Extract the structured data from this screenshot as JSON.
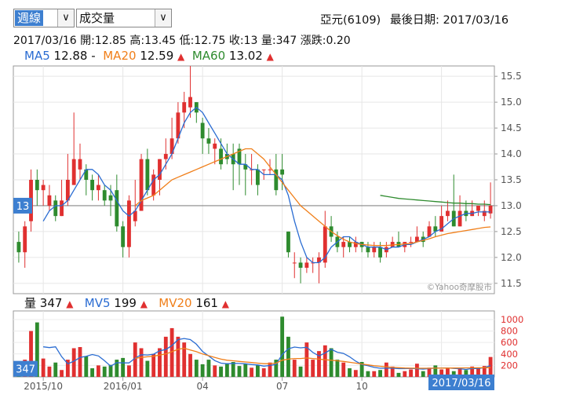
{
  "toolbar": {
    "period_select": {
      "value": "週線",
      "arrow": "∨"
    },
    "indicator_select": {
      "value": "成交量",
      "arrow": "∨"
    }
  },
  "stock": {
    "name_code": "亞元(6109)",
    "last_date_label": "最後日期: 2017/03/16"
  },
  "ohlc_line": {
    "date": "2017/03/16",
    "open": "開:12.85",
    "high": "高:13.45",
    "low": "低:12.75",
    "close": "收:13",
    "volume": "量:347",
    "change": "漲跌:0.20"
  },
  "ma_legend": [
    {
      "label": "MA5",
      "value": "12.88",
      "trend": "-",
      "color": "#2a6cd2"
    },
    {
      "label": "MA20",
      "value": "12.59",
      "trend": "▲",
      "color": "#f07f1a"
    },
    {
      "label": "MA60",
      "value": "13.02",
      "trend": "▲",
      "color": "#2e8b2e"
    }
  ],
  "vol_legend": [
    {
      "label": "量",
      "value": "347",
      "trend": "▲",
      "color": "#111111"
    },
    {
      "label": "MV5",
      "value": "199",
      "trend": "▲",
      "color": "#2a6cd2"
    },
    {
      "label": "MV20",
      "value": "161",
      "trend": "▲",
      "color": "#f07f1a"
    }
  ],
  "price_marker": "13",
  "volume_marker": "347",
  "date_marker": "2017/03/16",
  "watermark": "©Yahoo奇摩股市",
  "colors": {
    "up": "#e03030",
    "down": "#2e8b2e",
    "ma5": "#2a6cd2",
    "ma20": "#f07f1a",
    "ma60": "#2e8b2e",
    "marker": "#3d7fd0"
  },
  "chart_data": [
    {
      "type": "candlestick",
      "title": "",
      "ylim": [
        11.3,
        15.7
      ],
      "y_ticks": [
        "11.5",
        "12.0",
        "12.5",
        "13.0",
        "13.5",
        "14.0",
        "14.5",
        "15.0",
        "15.5"
      ],
      "x_ticks": [
        {
          "label": "2015/10",
          "index": 4
        },
        {
          "label": "2016/01",
          "index": 17
        },
        {
          "label": "04",
          "index": 30
        },
        {
          "label": "07",
          "index": 43
        },
        {
          "label": "10",
          "index": 56
        },
        {
          "label": "2017",
          "index": 69
        }
      ],
      "gridlines": true,
      "reference_line": 13.0,
      "candles": [
        [
          12.3,
          12.1,
          12.5,
          11.9
        ],
        [
          12.1,
          12.6,
          12.7,
          11.8
        ],
        [
          12.7,
          13.5,
          13.7,
          12.5
        ],
        [
          13.5,
          13.3,
          13.7,
          13.0
        ],
        [
          13.3,
          13.4,
          13.5,
          13.0
        ],
        [
          13.0,
          13.2,
          13.4,
          12.9
        ],
        [
          13.1,
          12.8,
          13.2,
          12.7
        ],
        [
          12.8,
          13.1,
          13.5,
          12.8
        ],
        [
          13.1,
          13.5,
          14.0,
          13.0
        ],
        [
          13.4,
          13.9,
          14.8,
          13.4
        ],
        [
          13.7,
          13.9,
          14.2,
          13.5
        ],
        [
          13.7,
          13.5,
          13.8,
          13.2
        ],
        [
          13.5,
          13.3,
          13.6,
          13.1
        ],
        [
          13.3,
          13.4,
          13.6,
          13.1
        ],
        [
          13.3,
          13.1,
          13.4,
          13.0
        ],
        [
          13.2,
          13.1,
          13.4,
          12.8
        ],
        [
          13.3,
          12.6,
          13.6,
          12.5
        ],
        [
          12.6,
          12.2,
          12.7,
          12.0
        ],
        [
          12.2,
          13.1,
          13.2,
          12.0
        ],
        [
          12.7,
          12.9,
          13.5,
          12.6
        ],
        [
          12.9,
          13.9,
          14.0,
          12.9
        ],
        [
          13.9,
          13.3,
          14.1,
          13.2
        ],
        [
          13.2,
          13.6,
          13.7,
          13.1
        ],
        [
          13.5,
          13.9,
          13.9,
          13.2
        ],
        [
          13.9,
          14.0,
          14.3,
          13.7
        ],
        [
          14.0,
          14.3,
          14.7,
          13.9
        ],
        [
          14.3,
          14.8,
          15.0,
          14.2
        ],
        [
          14.8,
          15.0,
          15.2,
          14.5
        ],
        [
          14.9,
          15.1,
          15.7,
          14.7
        ],
        [
          15.0,
          14.8,
          15.0,
          14.6
        ],
        [
          14.6,
          14.3,
          14.7,
          14.0
        ],
        [
          14.3,
          14.2,
          14.5,
          14.0
        ],
        [
          14.1,
          14.2,
          14.3,
          13.8
        ],
        [
          14.1,
          13.8,
          14.3,
          13.7
        ],
        [
          14.0,
          13.9,
          14.2,
          13.8
        ],
        [
          14.0,
          13.8,
          14.2,
          13.3
        ],
        [
          14.1,
          13.8,
          14.2,
          13.4
        ],
        [
          13.8,
          13.7,
          14.0,
          13.2
        ],
        [
          13.7,
          13.7,
          14.0,
          13.4
        ],
        [
          13.7,
          13.4,
          13.8,
          13.2
        ],
        [
          13.7,
          13.7,
          13.7,
          13.5
        ],
        [
          13.7,
          13.7,
          13.9,
          13.6
        ],
        [
          13.7,
          13.3,
          14.0,
          13.2
        ],
        [
          13.7,
          13.6,
          14.0,
          13.3
        ],
        [
          12.5,
          12.1,
          12.5,
          12.0
        ],
        [
          11.9,
          11.9,
          12.1,
          11.6
        ],
        [
          11.9,
          11.8,
          12.0,
          11.5
        ],
        [
          11.8,
          11.9,
          12.0,
          11.7
        ],
        [
          11.9,
          11.9,
          12.0,
          11.7
        ],
        [
          11.9,
          12.0,
          12.1,
          11.5
        ],
        [
          11.9,
          12.6,
          12.9,
          11.8
        ],
        [
          12.6,
          12.4,
          12.8,
          12.3
        ],
        [
          12.4,
          12.2,
          12.5,
          12.1
        ],
        [
          12.2,
          12.3,
          12.4,
          12.0
        ],
        [
          12.3,
          12.2,
          12.4,
          12.1
        ],
        [
          12.2,
          12.3,
          12.4,
          12.1
        ],
        [
          12.3,
          12.2,
          12.3,
          12.1
        ],
        [
          12.2,
          12.1,
          12.3,
          12.0
        ],
        [
          12.1,
          12.2,
          12.3,
          12.0
        ],
        [
          12.2,
          12.0,
          12.3,
          11.9
        ],
        [
          12.1,
          12.2,
          12.3,
          12.0
        ],
        [
          12.2,
          12.3,
          12.4,
          12.2
        ],
        [
          12.3,
          12.2,
          12.5,
          12.2
        ],
        [
          12.2,
          12.3,
          12.3,
          12.1
        ],
        [
          12.3,
          12.3,
          12.4,
          12.2
        ],
        [
          12.3,
          12.4,
          12.6,
          12.3
        ],
        [
          12.4,
          12.3,
          12.5,
          12.2
        ],
        [
          12.4,
          12.6,
          12.7,
          12.4
        ],
        [
          12.6,
          12.5,
          12.8,
          12.4
        ],
        [
          12.5,
          12.8,
          13.0,
          12.5
        ],
        [
          12.8,
          12.9,
          13.1,
          12.7
        ],
        [
          12.9,
          12.6,
          13.6,
          12.6
        ],
        [
          12.6,
          12.9,
          13.2,
          12.6
        ],
        [
          12.9,
          12.8,
          13.1,
          12.7
        ],
        [
          12.8,
          12.9,
          13.1,
          12.8
        ],
        [
          12.9,
          13.0,
          13.0,
          12.8
        ],
        [
          12.8,
          12.9,
          13.1,
          12.7
        ],
        [
          12.85,
          13.0,
          13.45,
          12.75
        ]
      ],
      "series": [
        {
          "name": "MA5",
          "values": [
            null,
            null,
            null,
            null,
            12.7,
            12.9,
            13.0,
            13.0,
            13.1,
            13.3,
            13.5,
            13.7,
            13.7,
            13.6,
            13.4,
            13.3,
            13.1,
            12.9,
            12.8,
            12.9,
            13.1,
            13.3,
            13.5,
            13.6,
            13.8,
            14.0,
            14.3,
            14.6,
            14.8,
            14.9,
            14.8,
            14.6,
            14.4,
            14.2,
            14.0,
            13.9,
            13.8,
            13.8,
            13.7,
            13.7,
            13.6,
            13.6,
            13.6,
            13.5,
            13.2,
            12.7,
            12.3,
            12.0,
            11.9,
            11.9,
            12.0,
            12.2,
            12.3,
            12.4,
            12.4,
            12.3,
            12.25,
            12.2,
            12.2,
            12.2,
            12.15,
            12.2,
            12.2,
            12.25,
            12.25,
            12.3,
            12.35,
            12.4,
            12.5,
            12.55,
            12.65,
            12.75,
            12.8,
            12.85,
            12.85,
            12.88,
            12.88,
            12.88
          ]
        },
        {
          "name": "MA20",
          "values": [
            null,
            null,
            null,
            null,
            null,
            null,
            null,
            null,
            null,
            null,
            null,
            null,
            null,
            null,
            null,
            null,
            null,
            null,
            null,
            13.0,
            13.1,
            13.15,
            13.2,
            13.3,
            13.4,
            13.5,
            13.55,
            13.6,
            13.65,
            13.7,
            13.75,
            13.8,
            13.85,
            13.9,
            13.95,
            14.0,
            14.05,
            14.1,
            14.1,
            14.0,
            13.9,
            13.75,
            13.6,
            13.45,
            13.3,
            13.15,
            13.0,
            12.9,
            12.8,
            12.7,
            12.6,
            12.5,
            12.42,
            12.35,
            12.3,
            12.27,
            12.25,
            12.24,
            12.23,
            12.23,
            12.23,
            12.24,
            12.25,
            12.26,
            12.27,
            12.3,
            12.33,
            12.36,
            12.4,
            12.43,
            12.46,
            12.48,
            12.5,
            12.52,
            12.54,
            12.56,
            12.58,
            12.59
          ]
        },
        {
          "name": "MA60",
          "values": [
            null,
            null,
            null,
            null,
            null,
            null,
            null,
            null,
            null,
            null,
            null,
            null,
            null,
            null,
            null,
            null,
            null,
            null,
            null,
            null,
            null,
            null,
            null,
            null,
            null,
            null,
            null,
            null,
            null,
            null,
            null,
            null,
            null,
            null,
            null,
            null,
            null,
            null,
            null,
            null,
            null,
            null,
            null,
            null,
            null,
            null,
            null,
            null,
            null,
            null,
            null,
            null,
            null,
            null,
            null,
            null,
            null,
            null,
            null,
            13.2,
            13.18,
            13.16,
            13.14,
            13.13,
            13.12,
            13.11,
            13.1,
            13.09,
            13.08,
            13.07,
            13.06,
            13.05,
            13.05,
            13.04,
            13.04,
            13.03,
            13.03,
            13.02
          ]
        }
      ]
    },
    {
      "type": "bar",
      "title": "",
      "ylim": [
        0,
        1150
      ],
      "y_ticks": [
        "200",
        "400",
        "600",
        "800",
        "1000"
      ],
      "volumes": [
        250,
        300,
        800,
        950,
        320,
        180,
        250,
        120,
        300,
        500,
        520,
        360,
        150,
        200,
        180,
        210,
        300,
        330,
        200,
        600,
        500,
        280,
        400,
        500,
        700,
        850,
        700,
        600,
        400,
        300,
        220,
        300,
        200,
        180,
        240,
        260,
        190,
        230,
        160,
        200,
        150,
        250,
        300,
        1050,
        700,
        300,
        180,
        600,
        300,
        450,
        550,
        500,
        300,
        250,
        150,
        120,
        260,
        100,
        100,
        120,
        250,
        180,
        70,
        100,
        130,
        230,
        100,
        160,
        200,
        130,
        150,
        100,
        150,
        120,
        180,
        160,
        190,
        347
      ],
      "series": [
        {
          "name": "MV5",
          "values": [
            null,
            null,
            null,
            null,
            524,
            510,
            524,
            352,
            228,
            274,
            338,
            360,
            390,
            366,
            282,
            188,
            248,
            244,
            244,
            328,
            386,
            382,
            396,
            456,
            476,
            546,
            650,
            670,
            650,
            570,
            444,
            364,
            284,
            240,
            228,
            236,
            234,
            228,
            215,
            208,
            188,
            198,
            219,
            390,
            490,
            520,
            506,
            516,
            426,
            366,
            416,
            480,
            430,
            410,
            350,
            274,
            216,
            196,
            166,
            150,
            150,
            150,
            144,
            144,
            148,
            142,
            136,
            146,
            152,
            154,
            156,
            148,
            142,
            130,
            146,
            146,
            160,
            199
          ]
        },
        {
          "name": "MV20",
          "values": [
            null,
            null,
            null,
            null,
            null,
            null,
            null,
            null,
            null,
            null,
            null,
            null,
            null,
            null,
            null,
            null,
            null,
            null,
            null,
            325,
            340,
            350,
            360,
            380,
            400,
            440,
            480,
            500,
            470,
            440,
            400,
            370,
            340,
            310,
            290,
            280,
            270,
            260,
            250,
            240,
            230,
            230,
            240,
            290,
            310,
            320,
            320,
            330,
            320,
            310,
            300,
            290,
            280,
            270,
            255,
            240,
            225,
            210,
            195,
            185,
            175,
            165,
            160,
            155,
            152,
            150,
            150,
            151,
            152,
            153,
            154,
            155,
            156,
            157,
            158,
            159,
            160,
            161
          ]
        }
      ]
    }
  ]
}
